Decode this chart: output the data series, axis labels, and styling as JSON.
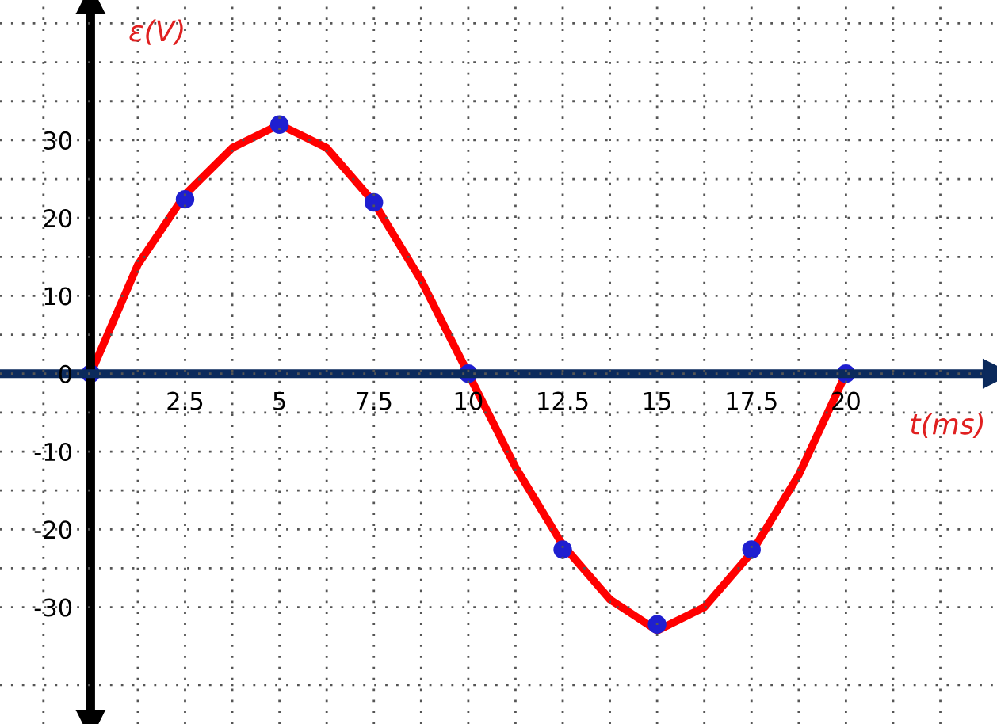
{
  "chart_data": {
    "type": "line",
    "xlabel": "t(ms)",
    "ylabel": "ε(V)",
    "xlim": [
      -2.4,
      24
    ],
    "ylim": [
      -45,
      48
    ],
    "xticks": [
      {
        "value": -1.25,
        "label": null
      },
      {
        "value": 1.25,
        "label": null
      },
      2.5,
      {
        "value": 3.75,
        "label": null
      },
      5,
      {
        "value": 6.25,
        "label": null
      },
      7.5,
      {
        "value": 8.75,
        "label": null
      },
      10,
      {
        "value": 11.25,
        "label": null
      },
      12.5,
      {
        "value": 13.75,
        "label": null
      },
      15,
      {
        "value": 16.25,
        "label": null
      },
      17.5,
      {
        "value": 18.75,
        "label": null
      },
      20,
      {
        "value": 21.25,
        "label": null
      },
      {
        "value": 22.5,
        "label": null
      }
    ],
    "yticks": [
      {
        "value": -40,
        "label": null
      },
      -30,
      {
        "value": -25,
        "label": null
      },
      -20,
      {
        "value": -15,
        "label": null
      },
      -10,
      {
        "value": -5,
        "label": null
      },
      0,
      {
        "value": 5,
        "label": null
      },
      10,
      {
        "value": 15,
        "label": null
      },
      20,
      {
        "value": 25,
        "label": null
      },
      30,
      {
        "value": 35,
        "label": null
      },
      {
        "value": 40,
        "label": null
      },
      {
        "value": 45,
        "label": null
      }
    ],
    "grid": true,
    "legend": false,
    "series": [
      {
        "color": "#ff0000",
        "marker": "none",
        "line_style": "solid",
        "x": [
          0,
          1.25,
          2.5,
          3.75,
          5,
          6.25,
          7.5,
          8.75,
          10,
          11.25,
          12.5,
          13.75,
          15,
          16.25,
          17.5,
          18.75,
          20
        ],
        "values": [
          0,
          14,
          23,
          29,
          32,
          29,
          22,
          12,
          0,
          -12,
          -22,
          -29,
          -33,
          -30,
          -23,
          -13,
          0
        ]
      },
      {
        "type": "scatter",
        "color": "#1f1fd0",
        "marker": "circle",
        "x": [
          0,
          2.5,
          5,
          7.5,
          10,
          12.5,
          15,
          17.5,
          20
        ],
        "values": [
          0,
          22.4,
          32,
          22,
          0,
          -22.6,
          -32.2,
          -22.6,
          0
        ]
      }
    ]
  }
}
